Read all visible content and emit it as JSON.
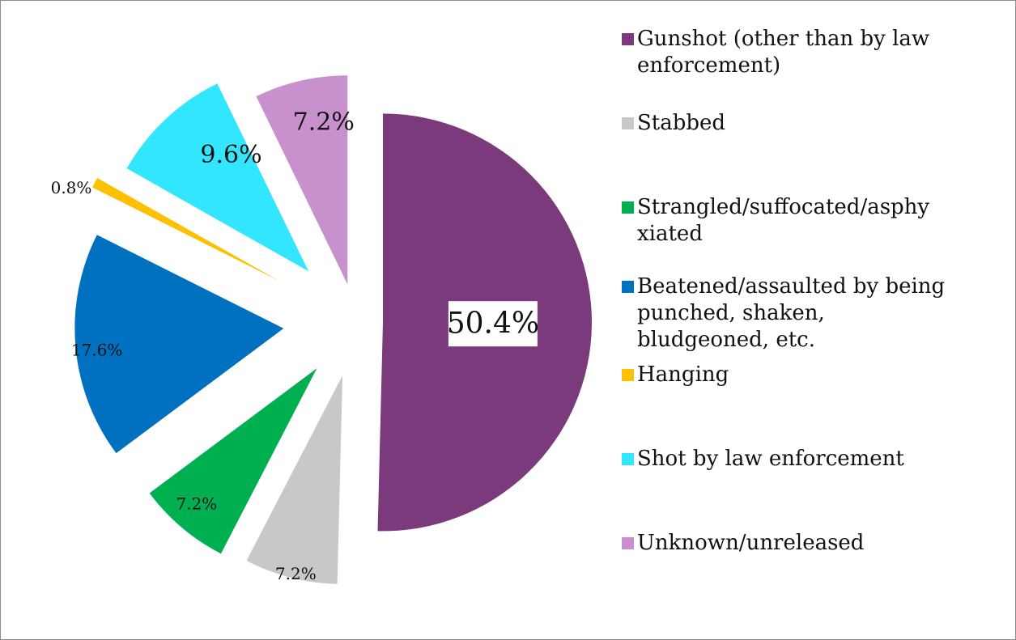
{
  "chart_data": {
    "type": "pie",
    "title": "",
    "slices": [
      {
        "label": "Gunshot (other than by law enforcement)",
        "value": 50.4,
        "data_label": "50.4%",
        "color": "#7a3a7b"
      },
      {
        "label": "Stabbed",
        "value": 7.2,
        "data_label": "7.2%",
        "color": "#c8c8c8"
      },
      {
        "label": "Strangled/suffocated/asphyxiated",
        "value": 7.2,
        "data_label": "7.2%",
        "color": "#00b050"
      },
      {
        "label": "Beatened/assaulted by being punched, shaken, bludgeoned, etc.",
        "value": 17.6,
        "data_label": "17.6%",
        "color": "#0070c0"
      },
      {
        "label": "Hanging",
        "value": 0.8,
        "data_label": "0.8%",
        "color": "#ffc000"
      },
      {
        "label": "Shot by law enforcement",
        "value": 9.6,
        "data_label": "9.6%",
        "color": "#33e6ff"
      },
      {
        "label": "Unknown/unreleased",
        "value": 7.2,
        "data_label": "7.2%",
        "color": "#c890cc"
      }
    ],
    "legend_position": "right",
    "exploded": true
  },
  "legend": {
    "items": [
      {
        "text_lines": [
          "Gunshot (other than by law",
          "enforcement)"
        ],
        "color": "#7a3a7b"
      },
      {
        "text_lines": [
          "Stabbed"
        ],
        "color": "#c8c8c8"
      },
      {
        "text_lines": [
          "Strangled/suffocated/asphy",
          "xiated"
        ],
        "color": "#00b050"
      },
      {
        "text_lines": [
          "Beatened/assaulted by being",
          "punched, shaken,",
          "bludgeoned, etc."
        ],
        "color": "#0070c0"
      },
      {
        "text_lines": [
          "Hanging"
        ],
        "color": "#ffc000"
      },
      {
        "text_lines": [
          "Shot by law enforcement"
        ],
        "color": "#33e6ff"
      },
      {
        "text_lines": [
          "Unknown/unreleased"
        ],
        "color": "#c890cc"
      }
    ]
  }
}
